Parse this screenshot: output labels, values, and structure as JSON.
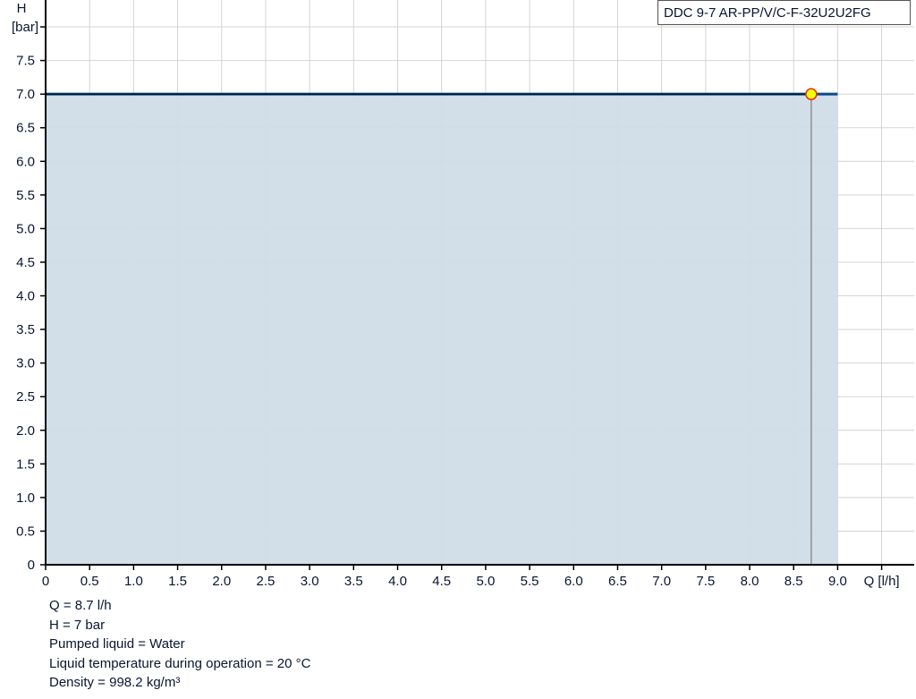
{
  "chart_data": {
    "type": "area",
    "title": "",
    "legend": "DDC 9-7 AR-PP/V/C-F-32U2U2FG",
    "legend_placement": "top-right",
    "xlabel": "Q [l/h]",
    "ylabel_line1": "H",
    "ylabel_line2": "[bar]",
    "xlim": [
      0,
      9.87
    ],
    "ylim": [
      0,
      8.4
    ],
    "grid": true,
    "x_ticks": [
      "0",
      "0.5",
      "1.0",
      "1.5",
      "2.0",
      "2.5",
      "3.0",
      "3.5",
      "4.0",
      "4.5",
      "5.0",
      "5.5",
      "6.0",
      "6.5",
      "7.0",
      "7.5",
      "8.0",
      "8.5",
      "9.0"
    ],
    "y_ticks": [
      "0",
      "0.5",
      "1.0",
      "1.5",
      "2.0",
      "2.5",
      "3.0",
      "3.5",
      "4.0",
      "4.5",
      "5.0",
      "5.5",
      "6.0",
      "6.5",
      "7.0",
      "7.5"
    ],
    "series": [
      {
        "x": [
          0,
          9.0
        ],
        "y": [
          7.0,
          7.0
        ],
        "color": "#0b4a8a",
        "fill": "#d0dce7"
      }
    ],
    "operating_point": {
      "x": 8.7,
      "y": 7.0,
      "fill": "#ffff00",
      "stroke": "#e03020"
    }
  },
  "info": [
    "Q = 8.7 l/h",
    "H = 7 bar",
    "Pumped liquid = Water",
    "Liquid temperature during operation = 20 °C",
    "Density = 998.2 kg/m³"
  ]
}
